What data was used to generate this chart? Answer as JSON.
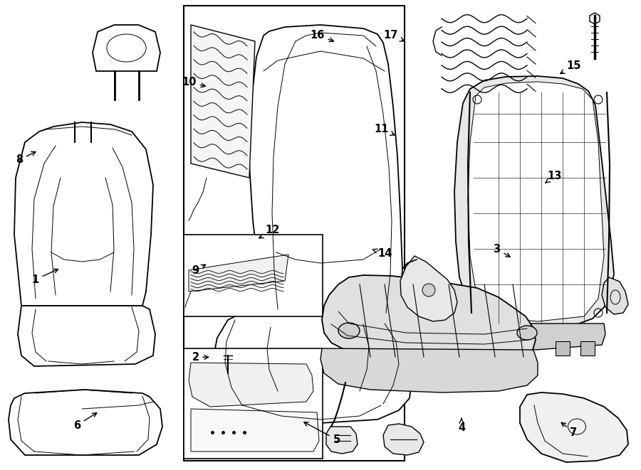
{
  "bg_color": "#ffffff",
  "figsize": [
    9.0,
    6.61
  ],
  "dpi": 100,
  "label_data": [
    [
      1,
      0.055,
      0.595,
      0.095,
      0.57
    ],
    [
      2,
      0.305,
      0.76,
      0.33,
      0.76
    ],
    [
      3,
      0.775,
      0.53,
      0.8,
      0.55
    ],
    [
      4,
      0.72,
      0.91,
      0.72,
      0.885
    ],
    [
      5,
      0.525,
      0.935,
      0.47,
      0.895
    ],
    [
      6,
      0.12,
      0.905,
      0.155,
      0.875
    ],
    [
      7,
      0.895,
      0.92,
      0.872,
      0.895
    ],
    [
      8,
      0.03,
      0.34,
      0.06,
      0.32
    ],
    [
      9,
      0.305,
      0.575,
      0.325,
      0.56
    ],
    [
      10,
      0.295,
      0.175,
      0.325,
      0.185
    ],
    [
      11,
      0.595,
      0.275,
      0.62,
      0.29
    ],
    [
      12,
      0.425,
      0.49,
      0.4,
      0.51
    ],
    [
      13,
      0.865,
      0.375,
      0.85,
      0.39
    ],
    [
      14,
      0.6,
      0.54,
      0.58,
      0.53
    ],
    [
      15,
      0.895,
      0.14,
      0.87,
      0.16
    ],
    [
      16,
      0.495,
      0.075,
      0.525,
      0.09
    ],
    [
      17,
      0.61,
      0.075,
      0.635,
      0.09
    ]
  ]
}
